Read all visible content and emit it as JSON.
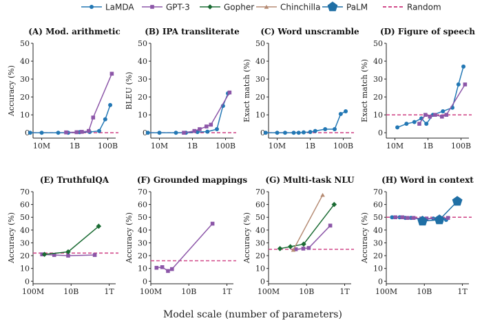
{
  "figure": {
    "xlabel": "Model scale (number of parameters)"
  },
  "colors": {
    "LaMDA": "#2277b4",
    "GPT-3": "#8c56a8",
    "Gopher": "#1a6b33",
    "Chinchilla": "#b58a72",
    "PaLM": "#1f6fa5",
    "Random": "#d14a8a"
  },
  "legend": [
    {
      "name": "LaMDA",
      "marker": "circle"
    },
    {
      "name": "GPT-3",
      "marker": "square"
    },
    {
      "name": "Gopher",
      "marker": "diamond"
    },
    {
      "name": "Chinchilla",
      "marker": "triangle"
    },
    {
      "name": "PaLM",
      "marker": "pentagon"
    },
    {
      "name": "Random",
      "marker": "dashed"
    }
  ],
  "chart_data": [
    {
      "type": "line",
      "title": "(A) Mod. arithmetic",
      "ylabel": "Accuracy (%)",
      "xlabel": "",
      "xscale": "log",
      "xlim": [
        3000000.0,
        300000000000.0
      ],
      "ylim": [
        -3,
        50
      ],
      "xticks": [
        {
          "v": 10000000.0,
          "label": "10M"
        },
        {
          "v": 1000000000.0,
          "label": "1B"
        },
        {
          "v": 100000000000.0,
          "label": "100B"
        }
      ],
      "yticks": [
        0,
        10,
        20,
        30,
        40,
        50
      ],
      "random": 0,
      "series": [
        {
          "name": "LaMDA",
          "x": [
            2000000.0,
            10000000.0,
            100000000.0,
            400000000.0,
            2000000000.0,
            8000000000.0,
            30000000000.0,
            70000000000.0,
            140000000000.0
          ],
          "y": [
            0,
            0,
            0,
            0,
            0.3,
            0.4,
            1,
            7.5,
            15.5
          ]
        },
        {
          "name": "GPT-3",
          "x": [
            300000000.0,
            1300000000.0,
            2700000000.0,
            7000000000.0,
            13000000000.0,
            175000000000.0
          ],
          "y": [
            0.2,
            0.3,
            0.5,
            1,
            8.5,
            33
          ]
        }
      ]
    },
    {
      "type": "line",
      "title": "(B) IPA transliterate",
      "ylabel": "BLEU (%)",
      "xlabel": "",
      "xscale": "log",
      "xlim": [
        3000000.0,
        300000000000.0
      ],
      "ylim": [
        -3,
        50
      ],
      "xticks": [
        {
          "v": 10000000.0,
          "label": "10M"
        },
        {
          "v": 1000000000.0,
          "label": "1B"
        },
        {
          "v": 100000000000.0,
          "label": "100B"
        }
      ],
      "yticks": [
        0,
        10,
        20,
        30,
        40,
        50
      ],
      "random": 0,
      "series": [
        {
          "name": "LaMDA",
          "x": [
            2000000.0,
            10000000.0,
            100000000.0,
            400000000.0,
            2000000000.0,
            8000000000.0,
            30000000000.0,
            70000000000.0,
            140000000000.0
          ],
          "y": [
            0,
            0,
            0,
            0,
            0.4,
            0.6,
            2,
            15,
            22
          ]
        },
        {
          "name": "GPT-3",
          "x": [
            300000000.0,
            1300000000.0,
            2700000000.0,
            7000000000.0,
            13000000000.0,
            175000000000.0
          ],
          "y": [
            0,
            1,
            2,
            3.5,
            4.5,
            22.5
          ]
        }
      ]
    },
    {
      "type": "line",
      "title": "(C) Word unscramble",
      "ylabel": "Exact match (%)",
      "xlabel": "",
      "xscale": "log",
      "xlim": [
        3000000.0,
        300000000000.0
      ],
      "ylim": [
        -3,
        50
      ],
      "xticks": [
        {
          "v": 10000000.0,
          "label": "10M"
        },
        {
          "v": 1000000000.0,
          "label": "1B"
        },
        {
          "v": 100000000000.0,
          "label": "100B"
        }
      ],
      "yticks": [
        0,
        10,
        20,
        30,
        40,
        50
      ],
      "random": 0,
      "series": [
        {
          "name": "LaMDA",
          "x": [
            2000000.0,
            10000000.0,
            30000000.0,
            100000000.0,
            200000000.0,
            400000000.0,
            1000000000.0,
            2000000000.0,
            8000000000.0,
            30000000000.0,
            70000000000.0,
            140000000000.0
          ],
          "y": [
            0,
            0,
            0,
            0,
            0,
            0.2,
            0.4,
            1,
            2,
            2,
            10.5,
            12
          ]
        }
      ]
    },
    {
      "type": "line",
      "title": "(D) Figure of speech",
      "ylabel": "Exact match (%)",
      "xlabel": "",
      "xscale": "log",
      "xlim": [
        3000000.0,
        300000000000.0
      ],
      "ylim": [
        -3,
        50
      ],
      "xticks": [
        {
          "v": 10000000.0,
          "label": "10M"
        },
        {
          "v": 1000000000.0,
          "label": "1B"
        },
        {
          "v": 100000000000.0,
          "label": "100B"
        }
      ],
      "yticks": [
        0,
        10,
        20,
        30,
        40,
        50
      ],
      "random": 10,
      "series": [
        {
          "name": "LaMDA",
          "x": [
            14000000.0,
            50000000.0,
            150000000.0,
            400000000.0,
            800000000.0,
            2000000000.0,
            8000000000.0,
            30000000000.0,
            70000000000.0,
            140000000000.0
          ],
          "y": [
            3,
            5,
            6,
            8,
            5,
            10,
            12,
            14,
            27,
            37
          ]
        },
        {
          "name": "GPT-3",
          "x": [
            300000000.0,
            700000000.0,
            1300000000.0,
            2700000000.0,
            7000000000.0,
            13000000000.0,
            175000000000.0
          ],
          "y": [
            5,
            10,
            9,
            10,
            9,
            10,
            27
          ]
        }
      ]
    },
    {
      "type": "line",
      "title": "(E) TruthfulQA",
      "ylabel": "Accuracy (%)",
      "xlabel": "",
      "xscale": "log",
      "xlim": [
        100000000.0,
        2200000000000.0
      ],
      "ylim": [
        -2,
        70
      ],
      "xticks": [
        {
          "v": 100000000.0,
          "label": "100M"
        },
        {
          "v": 10000000000.0,
          "label": "10B"
        },
        {
          "v": 1000000000000.0,
          "label": "1T"
        }
      ],
      "yticks": [
        0,
        10,
        20,
        30,
        40,
        50,
        60,
        70
      ],
      "random": 22,
      "series": [
        {
          "name": "GPT-3",
          "x": [
            300000000.0,
            1300000000.0,
            7000000000.0,
            175000000000.0
          ],
          "y": [
            21,
            20.5,
            20,
            20.5
          ]
        },
        {
          "name": "Gopher",
          "x": [
            400000000.0,
            7000000000.0,
            280000000000.0
          ],
          "y": [
            21,
            23,
            43
          ]
        }
      ]
    },
    {
      "type": "line",
      "title": "(F) Grounded mappings",
      "ylabel": "Accuracy (%)",
      "xlabel": "",
      "xscale": "log",
      "xlim": [
        100000000.0,
        2200000000000.0
      ],
      "ylim": [
        -2,
        70
      ],
      "xticks": [
        {
          "v": 100000000.0,
          "label": "100M"
        },
        {
          "v": 10000000000.0,
          "label": "10B"
        },
        {
          "v": 1000000000000.0,
          "label": "1T"
        }
      ],
      "yticks": [
        0,
        10,
        20,
        30,
        40,
        50,
        60,
        70
      ],
      "random": 16,
      "series": [
        {
          "name": "GPT-3",
          "x": [
            200000000.0,
            400000000.0,
            800000000.0,
            1300000000.0,
            175000000000.0
          ],
          "y": [
            10.5,
            11,
            8,
            9.5,
            45
          ]
        }
      ]
    },
    {
      "type": "line",
      "title": "(G) Multi-task NLU",
      "ylabel": "Accuracy (%)",
      "xlabel": "",
      "xscale": "log",
      "xlim": [
        100000000.0,
        2200000000000.0
      ],
      "ylim": [
        -2,
        70
      ],
      "xticks": [
        {
          "v": 100000000.0,
          "label": "100M"
        },
        {
          "v": 10000000000.0,
          "label": "10B"
        },
        {
          "v": 1000000000000.0,
          "label": "1T"
        }
      ],
      "yticks": [
        0,
        10,
        20,
        30,
        40,
        50,
        60,
        70
      ],
      "random": 25,
      "series": [
        {
          "name": "GPT-3",
          "x": [
            2700000000.0,
            6700000000.0,
            13000000000.0,
            175000000000.0
          ],
          "y": [
            25,
            25.5,
            26,
            43.5
          ]
        },
        {
          "name": "Gopher",
          "x": [
            400000000.0,
            1400000000.0,
            7000000000.0,
            280000000000.0
          ],
          "y": [
            25.5,
            27,
            29,
            60
          ]
        },
        {
          "name": "Chinchilla",
          "x": [
            2000000000.0,
            70000000000.0
          ],
          "y": [
            24.5,
            67.5
          ]
        }
      ]
    },
    {
      "type": "line",
      "title": "(H) Word in context",
      "ylabel": "Accuracy (%)",
      "xlabel": "",
      "xscale": "log",
      "xlim": [
        100000000.0,
        2200000000000.0
      ],
      "ylim": [
        -2,
        70
      ],
      "xticks": [
        {
          "v": 100000000.0,
          "label": "100M"
        },
        {
          "v": 10000000000.0,
          "label": "10B"
        },
        {
          "v": 1000000000000.0,
          "label": "1T"
        }
      ],
      "yticks": [
        0,
        10,
        20,
        30,
        40,
        50,
        60,
        70
      ],
      "random": 50,
      "series": [
        {
          "name": "LaMDA",
          "x": [
            200000000.0,
            500000000.0,
            1000000000.0,
            2000000000.0,
            8000000000.0,
            30000000000.0,
            70000000000.0,
            140000000000.0
          ],
          "y": [
            50,
            50,
            49.5,
            49.5,
            48.5,
            49,
            49,
            48
          ]
        },
        {
          "name": "GPT-3",
          "x": [
            300000000.0,
            700000000.0,
            1300000000.0,
            2700000000.0,
            7000000000.0,
            13000000000.0,
            175000000000.0
          ],
          "y": [
            50,
            50,
            49.5,
            49.5,
            49,
            49,
            49.5
          ]
        },
        {
          "name": "PaLM",
          "x": [
            8000000000.0,
            62000000000.0,
            540000000000.0
          ],
          "y": [
            47,
            48,
            62.5
          ]
        }
      ]
    }
  ]
}
